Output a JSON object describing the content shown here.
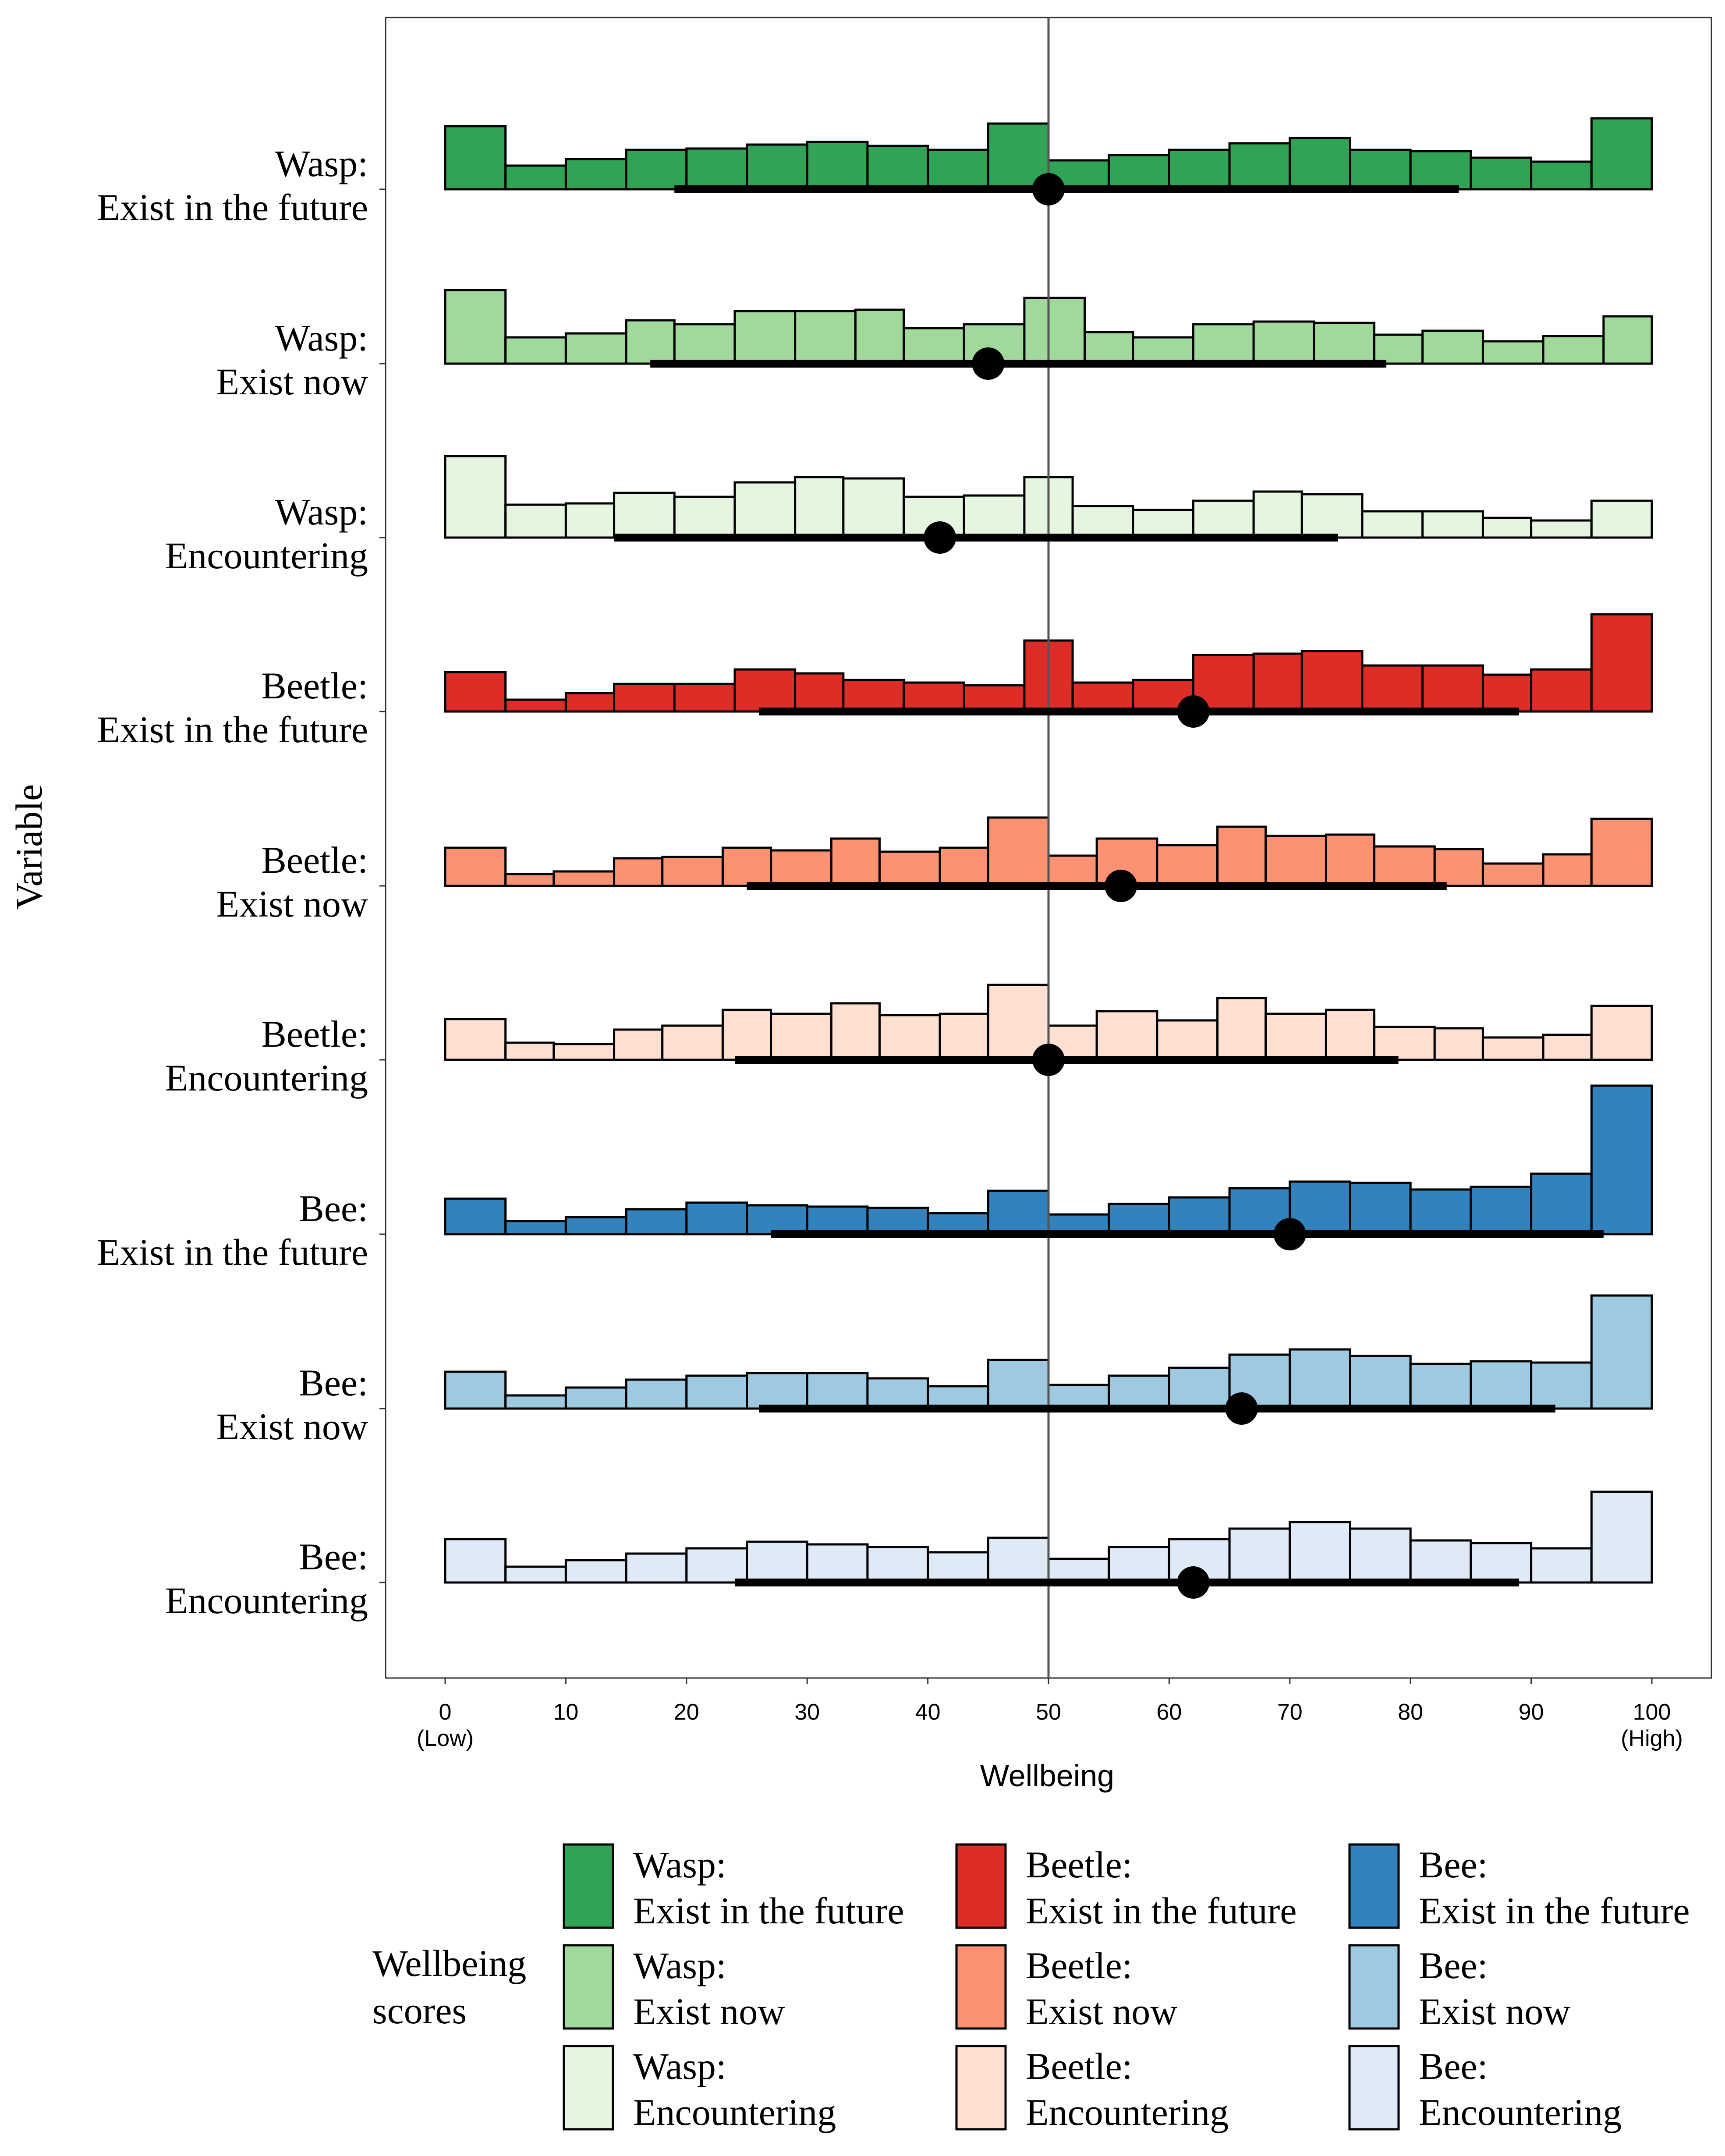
{
  "chart_data": {
    "type": "histogram",
    "xlabel": "Wellbeing",
    "ylabel": "Variable",
    "xlim": [
      0,
      100
    ],
    "x_ticks": [
      "0",
      "10",
      "20",
      "30",
      "40",
      "50",
      "60",
      "70",
      "80",
      "90",
      "100"
    ],
    "x_tick_sublabels": [
      {
        "at": 0,
        "label": "(Low)"
      },
      {
        "at": 100,
        "label": "(High)"
      }
    ],
    "reference_line_x": 50,
    "legend": {
      "title": [
        "Wellbeing",
        "scores"
      ],
      "position": "bottom",
      "columns": 3
    },
    "series": [
      {
        "label": [
          "Wasp:",
          "Exist in the future"
        ],
        "color": "#31a354",
        "edges": [
          0,
          5,
          10,
          15,
          20,
          25,
          30,
          35,
          40,
          45,
          50,
          55,
          60,
          65,
          70,
          75,
          80,
          85,
          90,
          95,
          100
        ],
        "heights": [
          48,
          18,
          23,
          30,
          31,
          34,
          36,
          33,
          30,
          50,
          22,
          26,
          30,
          35,
          39,
          30,
          29,
          24,
          21,
          54
        ],
        "point": 50,
        "interval": [
          19,
          84
        ]
      },
      {
        "label": [
          "Wasp:",
          "Exist now"
        ],
        "color": "#a1d99b",
        "edges": [
          0,
          5,
          10,
          15,
          19,
          24,
          29,
          34,
          38,
          43,
          48,
          53,
          57,
          62,
          67,
          72,
          77,
          81,
          86,
          91,
          96,
          100
        ],
        "heights": [
          56,
          20,
          23,
          33,
          30,
          40,
          40,
          41,
          27,
          30,
          50,
          24,
          20,
          30,
          32,
          31,
          22,
          25,
          17,
          21,
          36
        ],
        "point": 45,
        "interval": [
          17,
          78
        ]
      },
      {
        "label": [
          "Wasp:",
          "Encountering"
        ],
        "color": "#e5f5e0",
        "edges": [
          0,
          5,
          10,
          14,
          19,
          24,
          29,
          33,
          38,
          43,
          48,
          52,
          57,
          62,
          67,
          71,
          76,
          81,
          86,
          90,
          95,
          100
        ],
        "heights": [
          62,
          25,
          26,
          34,
          31,
          42,
          46,
          45,
          31,
          32,
          46,
          24,
          21,
          28,
          35,
          33,
          20,
          20,
          15,
          13,
          28
        ],
        "point": 41,
        "interval": [
          14,
          74
        ]
      },
      {
        "label": [
          "Beetle:",
          "Exist in the future"
        ],
        "color": "#de2d26",
        "edges": [
          0,
          5,
          10,
          14,
          19,
          24,
          29,
          33,
          38,
          43,
          48,
          52,
          57,
          62,
          67,
          71,
          76,
          81,
          86,
          90,
          95,
          100
        ],
        "heights": [
          30,
          9,
          14,
          21,
          21,
          32,
          29,
          24,
          22,
          20,
          54,
          22,
          24,
          43,
          44,
          46,
          35,
          35,
          28,
          32,
          74
        ],
        "point": 62,
        "interval": [
          26,
          89
        ]
      },
      {
        "label": [
          "Beetle:",
          "Exist now"
        ],
        "color": "#fc9272",
        "edges": [
          0,
          5,
          9,
          14,
          18,
          23,
          27,
          32,
          36,
          41,
          45,
          50,
          54,
          59,
          64,
          68,
          73,
          77,
          82,
          86,
          91,
          95,
          100
        ],
        "heights": [
          29,
          9,
          11,
          21,
          22,
          29,
          27,
          36,
          26,
          29,
          52,
          23,
          36,
          31,
          45,
          38,
          39,
          30,
          28,
          17,
          24,
          51
        ],
        "point": 56,
        "interval": [
          25,
          83
        ]
      },
      {
        "label": [
          "Beetle:",
          "Encountering"
        ],
        "color": "#fee0d2",
        "edges": [
          0,
          5,
          9,
          14,
          18,
          23,
          27,
          32,
          36,
          41,
          45,
          50,
          54,
          59,
          64,
          68,
          73,
          77,
          82,
          86,
          91,
          95,
          100
        ],
        "heights": [
          31,
          13,
          12,
          23,
          26,
          38,
          35,
          43,
          34,
          35,
          57,
          26,
          37,
          30,
          47,
          35,
          38,
          25,
          24,
          17,
          19,
          41
        ],
        "point": 50,
        "interval": [
          24,
          79
        ]
      },
      {
        "label": [
          "Bee:",
          "Exist in the future"
        ],
        "color": "#3182bd",
        "edges": [
          0,
          5,
          10,
          15,
          20,
          25,
          30,
          35,
          40,
          45,
          50,
          55,
          60,
          65,
          70,
          75,
          80,
          85,
          90,
          95,
          100
        ],
        "heights": [
          27,
          10,
          13,
          19,
          24,
          22,
          21,
          20,
          16,
          33,
          15,
          23,
          28,
          35,
          40,
          39,
          34,
          36,
          46,
          113
        ],
        "point": 70,
        "interval": [
          27,
          96
        ]
      },
      {
        "label": [
          "Bee:",
          "Exist now"
        ],
        "color": "#9ecae1",
        "edges": [
          0,
          5,
          10,
          15,
          20,
          25,
          30,
          35,
          40,
          45,
          50,
          55,
          60,
          65,
          70,
          75,
          80,
          85,
          90,
          95,
          100
        ],
        "heights": [
          28,
          10,
          16,
          22,
          25,
          27,
          27,
          23,
          17,
          37,
          18,
          25,
          31,
          41,
          45,
          40,
          34,
          36,
          35,
          86
        ],
        "point": 66,
        "interval": [
          26,
          92
        ]
      },
      {
        "label": [
          "Bee:",
          "Encountering"
        ],
        "color": "#deebf7",
        "edges": [
          0,
          5,
          10,
          15,
          20,
          25,
          30,
          35,
          40,
          45,
          50,
          55,
          60,
          65,
          70,
          75,
          80,
          85,
          90,
          95,
          100
        ],
        "heights": [
          33,
          12,
          17,
          22,
          26,
          31,
          29,
          27,
          23,
          34,
          18,
          27,
          33,
          41,
          46,
          41,
          32,
          30,
          26,
          69
        ],
        "point": 62,
        "interval": [
          24,
          89
        ]
      }
    ]
  }
}
